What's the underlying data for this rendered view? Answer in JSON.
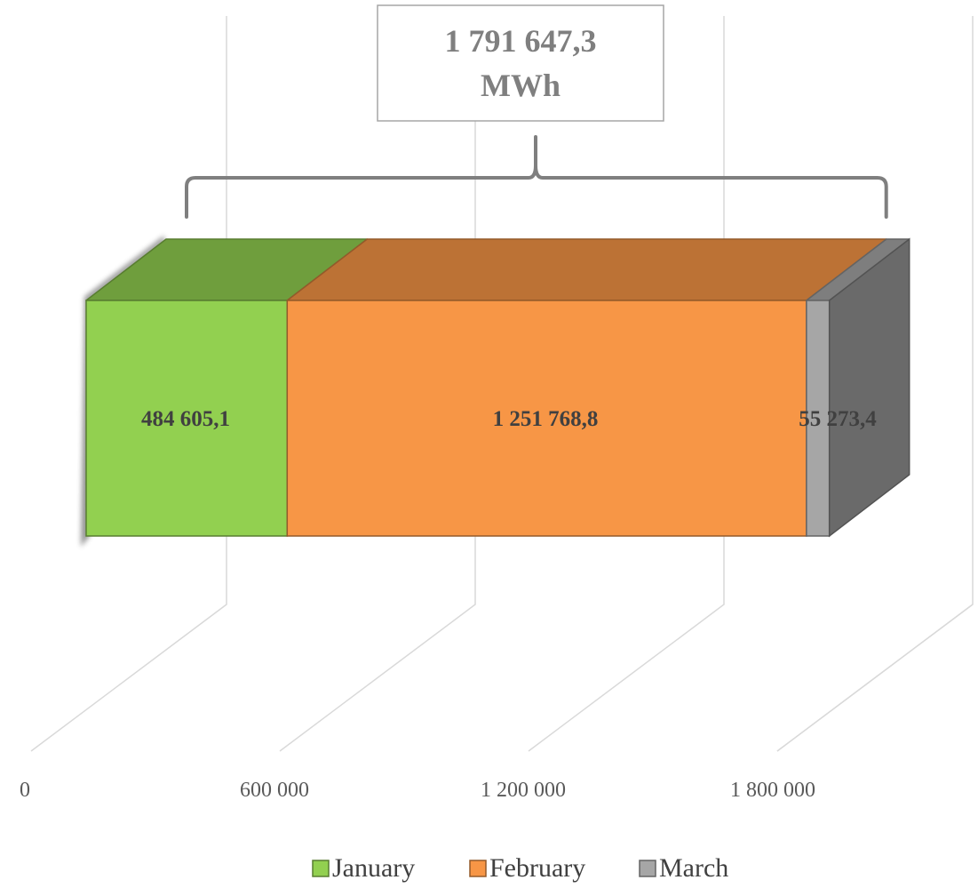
{
  "chart_data": {
    "type": "bar",
    "orientation": "horizontal",
    "stacked": true,
    "three_d": true,
    "categories": [
      ""
    ],
    "series": [
      {
        "name": "January",
        "values": [
          484605.1
        ],
        "label": "484 605,1",
        "color": "#92d050"
      },
      {
        "name": "February",
        "values": [
          1251768.8
        ],
        "label": "1 251 768,8",
        "color": "#f79646"
      },
      {
        "name": "March",
        "values": [
          55273.4
        ],
        "label": "55 273,4",
        "color": "#a6a6a6"
      }
    ],
    "total": {
      "value": 1791647.3,
      "label_line1": "1 791 647,3",
      "label_line2": "MWh"
    },
    "x_ticks": [
      {
        "value": 0,
        "label": "0"
      },
      {
        "value": 600000,
        "label": "600 000"
      },
      {
        "value": 1200000,
        "label": "1 200 000"
      },
      {
        "value": 1800000,
        "label": "1 800 000"
      }
    ],
    "xlim": [
      0,
      2400000
    ],
    "grid": true,
    "legend_position": "bottom",
    "title": "",
    "xlabel": "",
    "ylabel": ""
  }
}
